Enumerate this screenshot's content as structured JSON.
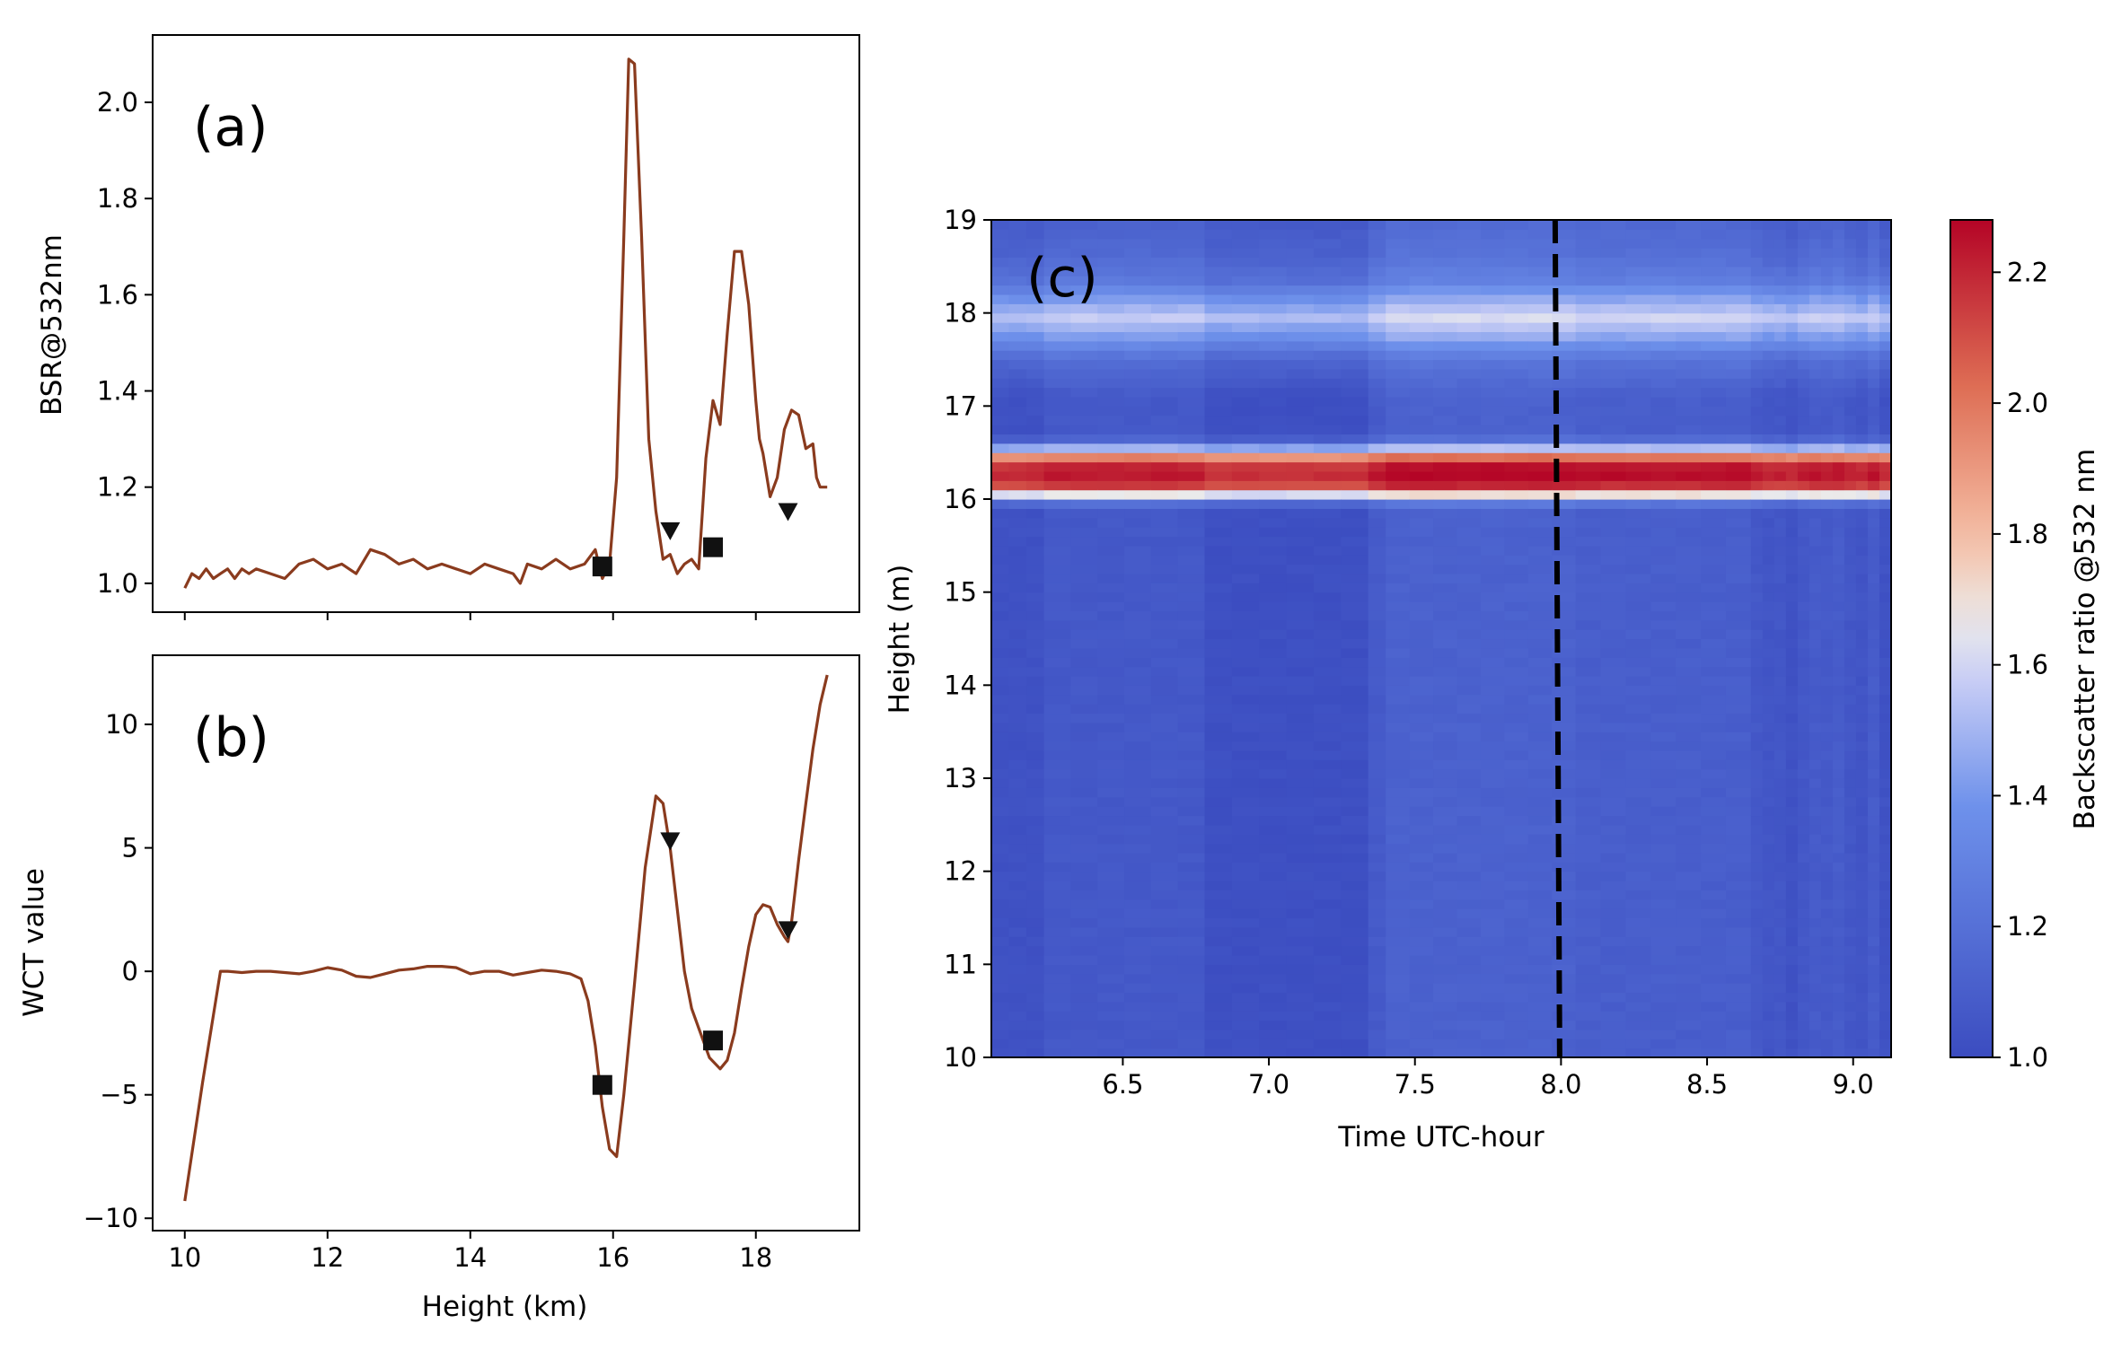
{
  "chart_data": [
    {
      "panel": "(a)",
      "type": "line",
      "xlabel": "",
      "ylabel": "BSR@532nm",
      "xlim": [
        9.55,
        19.45
      ],
      "ylim": [
        0.94,
        2.14
      ],
      "xticks": [
        10,
        12,
        14,
        16,
        18
      ],
      "yticks": [
        1.0,
        1.2,
        1.4,
        1.6,
        1.8,
        2.0
      ],
      "ytick_labels": [
        "1.0",
        "1.2",
        "1.4",
        "1.6",
        "1.8",
        "2.0"
      ],
      "color": "#8a3b1e",
      "x": [
        10.0,
        10.1,
        10.2,
        10.3,
        10.4,
        10.5,
        10.6,
        10.7,
        10.8,
        10.9,
        11.0,
        11.2,
        11.4,
        11.6,
        11.8,
        12.0,
        12.2,
        12.4,
        12.6,
        12.8,
        13.0,
        13.2,
        13.4,
        13.6,
        13.8,
        14.0,
        14.2,
        14.4,
        14.6,
        14.7,
        14.8,
        15.0,
        15.2,
        15.4,
        15.6,
        15.75,
        15.85,
        15.95,
        16.05,
        16.15,
        16.22,
        16.3,
        16.4,
        16.5,
        16.6,
        16.7,
        16.8,
        16.9,
        17.0,
        17.1,
        17.2,
        17.3,
        17.4,
        17.5,
        17.6,
        17.7,
        17.8,
        17.9,
        18.0,
        18.05,
        18.1,
        18.2,
        18.3,
        18.4,
        18.5,
        18.6,
        18.7,
        18.8,
        18.85,
        18.9,
        19.0
      ],
      "y": [
        0.99,
        1.02,
        1.01,
        1.03,
        1.01,
        1.02,
        1.03,
        1.01,
        1.03,
        1.02,
        1.03,
        1.02,
        1.01,
        1.04,
        1.05,
        1.03,
        1.04,
        1.02,
        1.07,
        1.06,
        1.04,
        1.05,
        1.03,
        1.04,
        1.03,
        1.02,
        1.04,
        1.03,
        1.02,
        1.0,
        1.04,
        1.03,
        1.05,
        1.03,
        1.04,
        1.07,
        1.01,
        1.04,
        1.22,
        1.72,
        2.09,
        2.08,
        1.72,
        1.3,
        1.15,
        1.05,
        1.06,
        1.02,
        1.04,
        1.05,
        1.03,
        1.26,
        1.38,
        1.33,
        1.52,
        1.69,
        1.69,
        1.58,
        1.38,
        1.3,
        1.27,
        1.18,
        1.22,
        1.32,
        1.36,
        1.35,
        1.28,
        1.29,
        1.22,
        1.2,
        1.2
      ],
      "markers": [
        {
          "shape": "square",
          "x": 15.85,
          "y": 1.035
        },
        {
          "shape": "square",
          "x": 17.4,
          "y": 1.075
        },
        {
          "shape": "triangle-down",
          "x": 16.8,
          "y": 1.11
        },
        {
          "shape": "triangle-down",
          "x": 18.45,
          "y": 1.15
        }
      ]
    },
    {
      "panel": "(b)",
      "type": "line",
      "xlabel": "Height (km)",
      "ylabel": "WCT value",
      "xlim": [
        9.55,
        19.45
      ],
      "ylim": [
        -10.5,
        12.8
      ],
      "xticks": [
        10,
        12,
        14,
        16,
        18
      ],
      "yticks": [
        -10,
        -5,
        0,
        5,
        10
      ],
      "ytick_labels": [
        "−10",
        "−5",
        "0",
        "5",
        "10"
      ],
      "color": "#8a3b1e",
      "x": [
        10.0,
        10.25,
        10.5,
        10.6,
        10.8,
        11.0,
        11.2,
        11.4,
        11.6,
        11.8,
        12.0,
        12.2,
        12.4,
        12.6,
        12.8,
        13.0,
        13.2,
        13.4,
        13.6,
        13.8,
        14.0,
        14.2,
        14.4,
        14.6,
        14.8,
        15.0,
        15.2,
        15.4,
        15.55,
        15.65,
        15.75,
        15.85,
        15.95,
        16.05,
        16.15,
        16.3,
        16.45,
        16.6,
        16.7,
        16.8,
        16.9,
        17.0,
        17.1,
        17.2,
        17.35,
        17.5,
        17.6,
        17.7,
        17.8,
        17.9,
        18.0,
        18.1,
        18.2,
        18.3,
        18.4,
        18.45,
        18.5,
        18.6,
        18.7,
        18.8,
        18.9,
        19.0
      ],
      "y": [
        -9.3,
        -4.5,
        0.0,
        0.0,
        -0.05,
        0.0,
        0.0,
        -0.05,
        -0.1,
        0.0,
        0.15,
        0.05,
        -0.2,
        -0.25,
        -0.1,
        0.05,
        0.1,
        0.2,
        0.2,
        0.15,
        -0.1,
        0.0,
        0.0,
        -0.15,
        -0.05,
        0.05,
        0.0,
        -0.1,
        -0.3,
        -1.2,
        -3.0,
        -5.5,
        -7.2,
        -7.5,
        -5.0,
        -0.5,
        4.2,
        7.1,
        6.8,
        5.0,
        2.5,
        0.0,
        -1.5,
        -2.3,
        -3.5,
        -3.95,
        -3.6,
        -2.5,
        -0.7,
        1.0,
        2.3,
        2.7,
        2.6,
        1.9,
        1.4,
        1.2,
        2.0,
        4.5,
        6.8,
        9.0,
        10.8,
        12.0
      ],
      "markers": [
        {
          "shape": "square",
          "x": 15.85,
          "y": -4.6
        },
        {
          "shape": "square",
          "x": 17.4,
          "y": -2.8
        },
        {
          "shape": "triangle-down",
          "x": 16.8,
          "y": 5.3
        },
        {
          "shape": "triangle-down",
          "x": 18.45,
          "y": 1.7
        }
      ]
    },
    {
      "panel": "(c)",
      "type": "heatmap",
      "xlabel": "Time UTC-hour",
      "ylabel": "Height (m)",
      "xlim": [
        6.05,
        9.13
      ],
      "ylim": [
        10,
        19
      ],
      "xticks": [
        6.5,
        7.0,
        7.5,
        8.0,
        8.5,
        9.0
      ],
      "xtick_labels": [
        "6.5",
        "7.0",
        "7.5",
        "8.0",
        "8.5",
        "9.0"
      ],
      "yticks": [
        10,
        11,
        12,
        13,
        14,
        15,
        16,
        17,
        18,
        19
      ],
      "colormap": "coolwarm",
      "colorbar_label": "Backscatter ratio @532 nm",
      "colorbar_range": [
        1.0,
        2.28
      ],
      "colorbar_ticks": [
        1.0,
        1.2,
        1.4,
        1.6,
        1.8,
        2.0,
        2.2
      ],
      "colorbar_tick_labels": [
        "1.0",
        "1.2",
        "1.4",
        "1.6",
        "1.8",
        "2.0",
        "2.2"
      ],
      "time_segment_bounds": [
        6.05,
        6.23,
        6.78,
        7.34,
        7.4,
        8.05,
        8.65,
        9.13
      ],
      "segment_base_values": [
        1.03,
        1.07,
        1.02,
        1.08,
        1.12,
        1.1,
        1.06
      ],
      "height_profile": [
        {
          "h": 10.0,
          "v": 0.0
        },
        {
          "h": 15.9,
          "v": 0.0
        },
        {
          "h": 16.0,
          "v": 0.25
        },
        {
          "h": 16.08,
          "v": 0.8
        },
        {
          "h": 16.15,
          "v": 1.08
        },
        {
          "h": 16.3,
          "v": 1.2
        },
        {
          "h": 16.42,
          "v": 1.05
        },
        {
          "h": 16.52,
          "v": 0.55
        },
        {
          "h": 16.62,
          "v": 0.12
        },
        {
          "h": 16.7,
          "v": 0.0
        },
        {
          "h": 17.1,
          "v": 0.0
        },
        {
          "h": 17.5,
          "v": 0.12
        },
        {
          "h": 17.75,
          "v": 0.35
        },
        {
          "h": 17.95,
          "v": 0.5
        },
        {
          "h": 18.15,
          "v": 0.35
        },
        {
          "h": 18.35,
          "v": 0.18
        },
        {
          "h": 18.6,
          "v": 0.1
        },
        {
          "h": 19.0,
          "v": 0.05
        }
      ],
      "vline": {
        "x": 7.98,
        "style": "dashed",
        "color": "#000000"
      }
    }
  ]
}
